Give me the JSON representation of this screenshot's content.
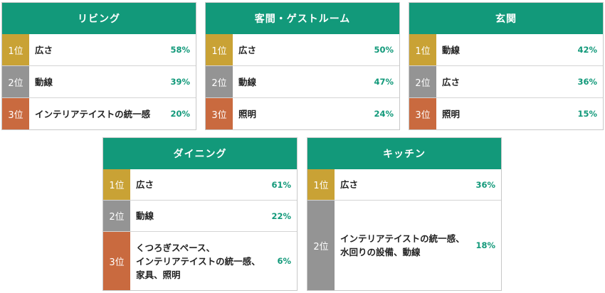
{
  "cards": [
    {
      "title": "リビング",
      "rows": [
        {
          "rank": "1位",
          "label": "広さ",
          "pct": "58%"
        },
        {
          "rank": "2位",
          "label": "動線",
          "pct": "39%"
        },
        {
          "rank": "3位",
          "label": "インテリアテイストの統一感",
          "pct": "20%"
        }
      ]
    },
    {
      "title": "客間・ゲストルーム",
      "rows": [
        {
          "rank": "1位",
          "label": "広さ",
          "pct": "50%"
        },
        {
          "rank": "2位",
          "label": "動線",
          "pct": "47%"
        },
        {
          "rank": "3位",
          "label": "照明",
          "pct": "24%"
        }
      ]
    },
    {
      "title": "玄関",
      "rows": [
        {
          "rank": "1位",
          "label": "動線",
          "pct": "42%"
        },
        {
          "rank": "2位",
          "label": "広さ",
          "pct": "36%"
        },
        {
          "rank": "3位",
          "label": "照明",
          "pct": "15%"
        }
      ]
    },
    {
      "title": "ダイニング",
      "rows": [
        {
          "rank": "1位",
          "label": "広さ",
          "pct": "61%"
        },
        {
          "rank": "2位",
          "label": "動線",
          "pct": "22%"
        },
        {
          "rank": "3位",
          "label": "くつろぎスペース、\nインテリアテイストの統一感、\n家具、照明",
          "pct": "6%"
        }
      ]
    },
    {
      "title": "キッチン",
      "rows": [
        {
          "rank": "1位",
          "label": "広さ",
          "pct": "36%"
        },
        {
          "rank": "2位",
          "label": "インテリアテイストの統一感、\n水回りの設備、動線",
          "pct": "18%"
        }
      ]
    }
  ]
}
